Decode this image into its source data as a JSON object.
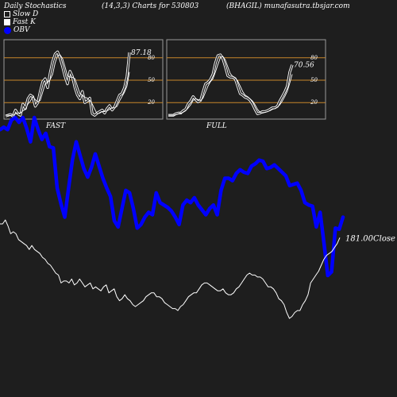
{
  "header": {
    "left": "Daily Stochastics",
    "mid": "(14,3,3) Charts for 530803",
    "right": "(BHAGIL) munafasutra.tbsjar.com"
  },
  "legend": {
    "slow_d": "Slow  D",
    "fast_k": "Fast K",
    "obv": "OBV"
  },
  "colors": {
    "background": "#1e1e1e",
    "obv": "#0000ff",
    "ref_lines": "#c8862a",
    "lines": "#ffffff"
  },
  "chart_data": [
    {
      "type": "line",
      "panel": "FAST",
      "title": "FAST",
      "ylim": [
        0,
        100
      ],
      "yticks": [
        20,
        50,
        80
      ],
      "ref_lines": [
        20,
        50,
        80
      ],
      "last_value_label": "87.18",
      "series": [
        {
          "name": "Fast K",
          "values": [
            2,
            3,
            4,
            2,
            10,
            5,
            3,
            18,
            12,
            25,
            30,
            28,
            15,
            20,
            35,
            48,
            52,
            40,
            60,
            75,
            85,
            88,
            80,
            68,
            55,
            45,
            62,
            55,
            40,
            30,
            25,
            35,
            20,
            22,
            26,
            5,
            3,
            6,
            8,
            10,
            6,
            12,
            16,
            10,
            14,
            22,
            30,
            32,
            40,
            55,
            87.18
          ]
        },
        {
          "name": "Slow D",
          "values": [
            3,
            3,
            3,
            3,
            5,
            6,
            6,
            9,
            11,
            18,
            22,
            28,
            24,
            21,
            23,
            34,
            45,
            47,
            51,
            58,
            73,
            83,
            84,
            79,
            68,
            56,
            54,
            54,
            52,
            42,
            32,
            30,
            27,
            26,
            23,
            18,
            11,
            5,
            6,
            8,
            8,
            9,
            11,
            13,
            13,
            15,
            22,
            28,
            34,
            42,
            61
          ]
        }
      ]
    },
    {
      "type": "line",
      "panel": "FULL",
      "title": "FULL",
      "ylim": [
        0,
        100
      ],
      "yticks": [
        20,
        50,
        80
      ],
      "ref_lines": [
        20,
        50,
        80
      ],
      "last_value_label": "70.56",
      "series": [
        {
          "name": "Fast K",
          "values": [
            3,
            3,
            3,
            5,
            6,
            6,
            9,
            11,
            18,
            22,
            28,
            24,
            21,
            23,
            34,
            45,
            47,
            51,
            58,
            73,
            83,
            84,
            79,
            68,
            56,
            54,
            54,
            52,
            42,
            32,
            30,
            27,
            26,
            23,
            18,
            11,
            5,
            6,
            8,
            8,
            9,
            11,
            13,
            13,
            15,
            22,
            28,
            34,
            42,
            61,
            70.56
          ]
        },
        {
          "name": "Slow D",
          "values": [
            3,
            3,
            3,
            4,
            5,
            6,
            7,
            9,
            13,
            17,
            23,
            25,
            24,
            23,
            26,
            34,
            42,
            48,
            52,
            61,
            71,
            80,
            82,
            77,
            68,
            59,
            55,
            53,
            49,
            42,
            35,
            30,
            28,
            25,
            22,
            17,
            11,
            7,
            6,
            7,
            8,
            9,
            11,
            12,
            14,
            17,
            22,
            28,
            35,
            46,
            58
          ]
        }
      ]
    },
    {
      "type": "line",
      "panel": "main",
      "close_label": "181.00Close",
      "series": [
        {
          "name": "OBV",
          "values": [
            240,
            242,
            240,
            248,
            250,
            246,
            250,
            241,
            230,
            250,
            240,
            232,
            237,
            226,
            225,
            192,
            179,
            168,
            192,
            215,
            230,
            219,
            208,
            201,
            209,
            220,
            210,
            200,
            192,
            185,
            165,
            160,
            175,
            190,
            188,
            175,
            159,
            162,
            168,
            172,
            170,
            188,
            180,
            178,
            176,
            173,
            168,
            162,
            178,
            182,
            180,
            184,
            178,
            174,
            170,
            175,
            178,
            170,
            190,
            200,
            200,
            198,
            204,
            207,
            205,
            204,
            210,
            212,
            215,
            214,
            208,
            209,
            211,
            208,
            205,
            202,
            194,
            195,
            196,
            190,
            180,
            178,
            177,
            160,
            172,
            147,
            120,
            123,
            159,
            158,
            168
          ]
        },
        {
          "name": "Close",
          "values": [
            188,
            188,
            190,
            187,
            183,
            184,
            183,
            180,
            179,
            178,
            177,
            175,
            177,
            175,
            174,
            173,
            171,
            170,
            168,
            167,
            165,
            163,
            162,
            158,
            159,
            159,
            158,
            160,
            157,
            158,
            160,
            158,
            156,
            157,
            158,
            155,
            156,
            155,
            154,
            156,
            157,
            153,
            154,
            155,
            151,
            149,
            150,
            152,
            150,
            149,
            147,
            146,
            147,
            148,
            149,
            151,
            152,
            153,
            153,
            151,
            151,
            150,
            148,
            147,
            146,
            145,
            145,
            144,
            146,
            147,
            149,
            151,
            152,
            153,
            153,
            155,
            157,
            158,
            158,
            157,
            156,
            155,
            154,
            154,
            155,
            153,
            152,
            152,
            153,
            155,
            156,
            158,
            160,
            162,
            163,
            162,
            162,
            161,
            161,
            160,
            158,
            156,
            156,
            155,
            153,
            150,
            149,
            147,
            143,
            140,
            141,
            143,
            144,
            144,
            147,
            149,
            152,
            158,
            160,
            162,
            164,
            167,
            170,
            172,
            173,
            174,
            176,
            178,
            181
          ]
        }
      ]
    }
  ]
}
